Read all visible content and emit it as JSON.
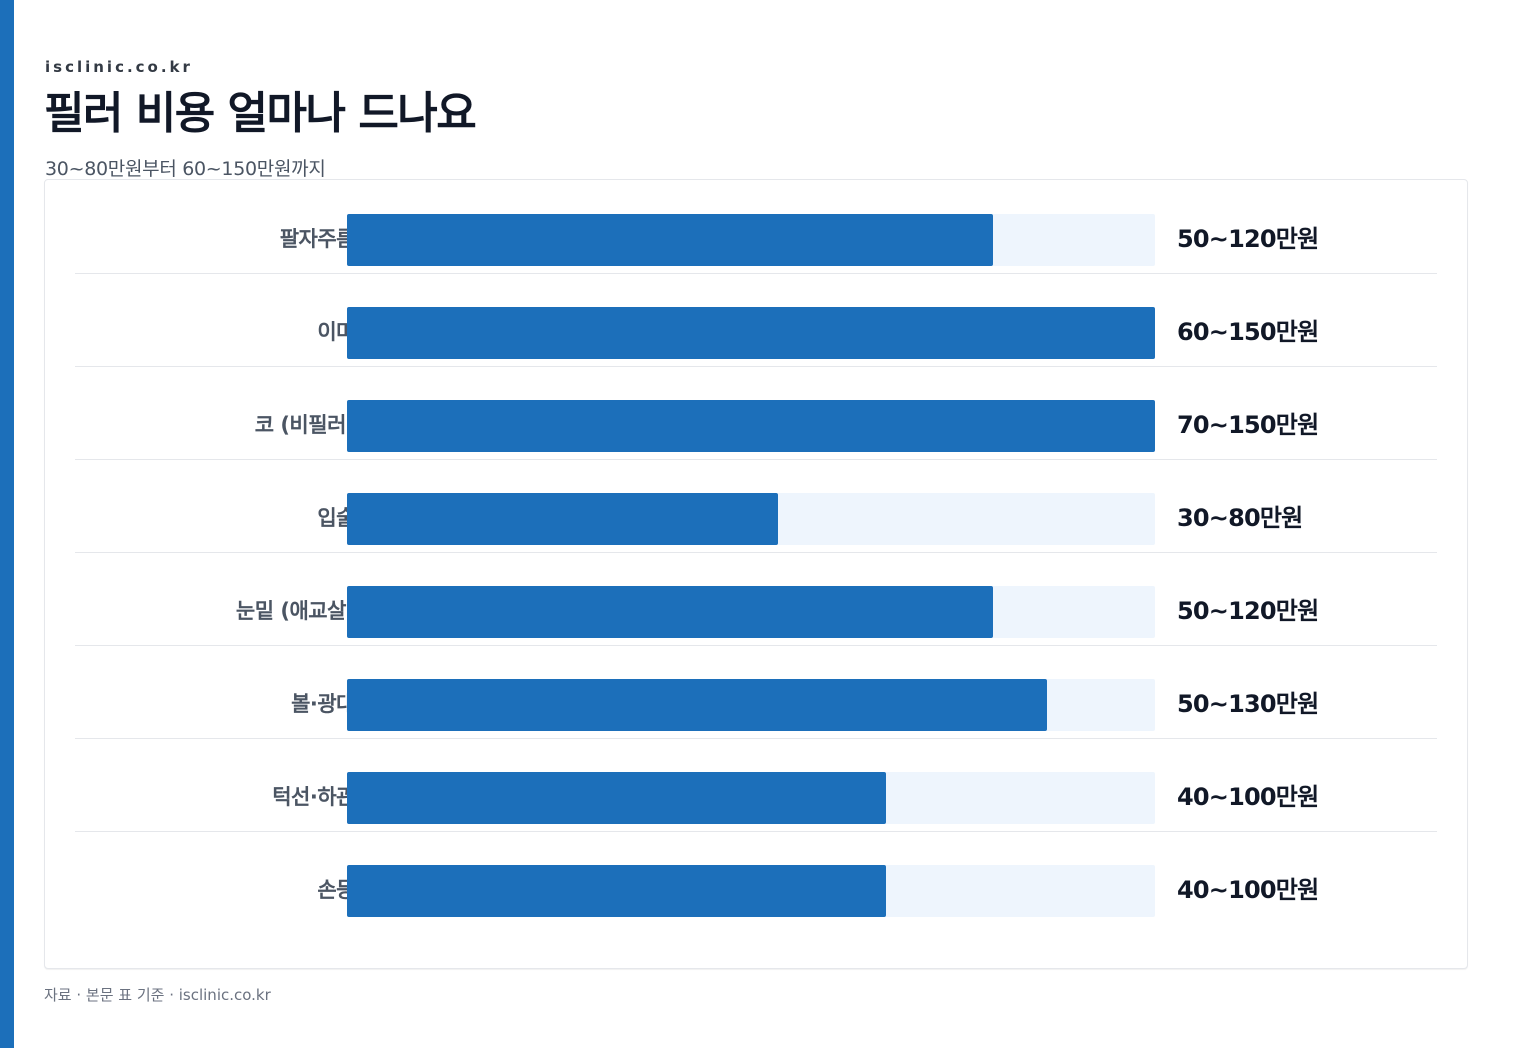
{
  "site": "isclinic.co.kr",
  "title": "필러 비용 얼마나 드나요",
  "subtitle": "30~80만원부터 60~150만원까지",
  "source": "자료 · 본문 표 기준 · isclinic.co.kr",
  "colors": {
    "accent": "#1c6fba",
    "track": "#eef5fd",
    "text": "#111827"
  },
  "chart_data": {
    "type": "bar",
    "orientation": "horizontal",
    "categories": [
      "팔자주름",
      "이마",
      "코 (비필러)",
      "입술",
      "눈밑 (애교살)",
      "볼·광대",
      "턱선·하관",
      "손등"
    ],
    "series": [
      {
        "values": [
          120,
          150,
          150,
          80,
          120,
          130,
          100,
          100
        ]
      }
    ],
    "labels": [
      "50~120만원",
      "60~150만원",
      "70~150만원",
      "30~80만원",
      "50~120만원",
      "50~130만원",
      "40~100만원",
      "40~100만원"
    ],
    "xlim": [
      0,
      150
    ],
    "grid": false,
    "legend": "none"
  }
}
